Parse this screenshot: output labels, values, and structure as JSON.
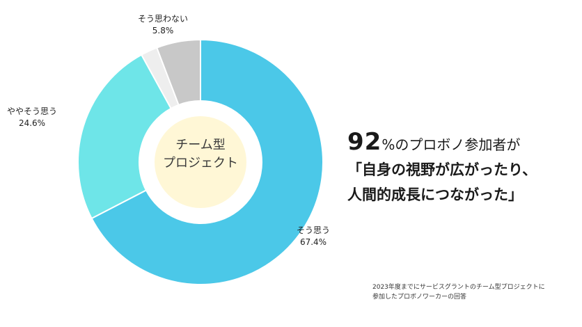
{
  "chart_data": {
    "type": "pie",
    "donut": true,
    "slices": [
      {
        "label": "そう思う",
        "percent_text": "67.4%",
        "value": 67.4,
        "color": "#4bc8e8"
      },
      {
        "label": "ややそう思う",
        "percent_text": "24.6%",
        "value": 24.6,
        "color": "#6ee5e8"
      },
      {
        "label": "",
        "percent_text": "",
        "value": 2.2,
        "color": "#eeeeee"
      },
      {
        "label": "そう思わない",
        "percent_text": "5.8%",
        "value": 5.8,
        "color": "#c8c8c8"
      }
    ],
    "center_label": [
      "チーム型",
      "プロジェクト"
    ],
    "center_fill": "#fff7d6"
  },
  "headline": {
    "number": "92",
    "line1_rest": "%のプロボノ参加者が",
    "line2": "「自身の視野が広がったり、",
    "line3": "人間的成長につながった」"
  },
  "footnote": {
    "line1": "2023年度までにサービスグラントのチーム型プロジェクトに",
    "line2": "参加したプロボノワーカーの回答"
  }
}
